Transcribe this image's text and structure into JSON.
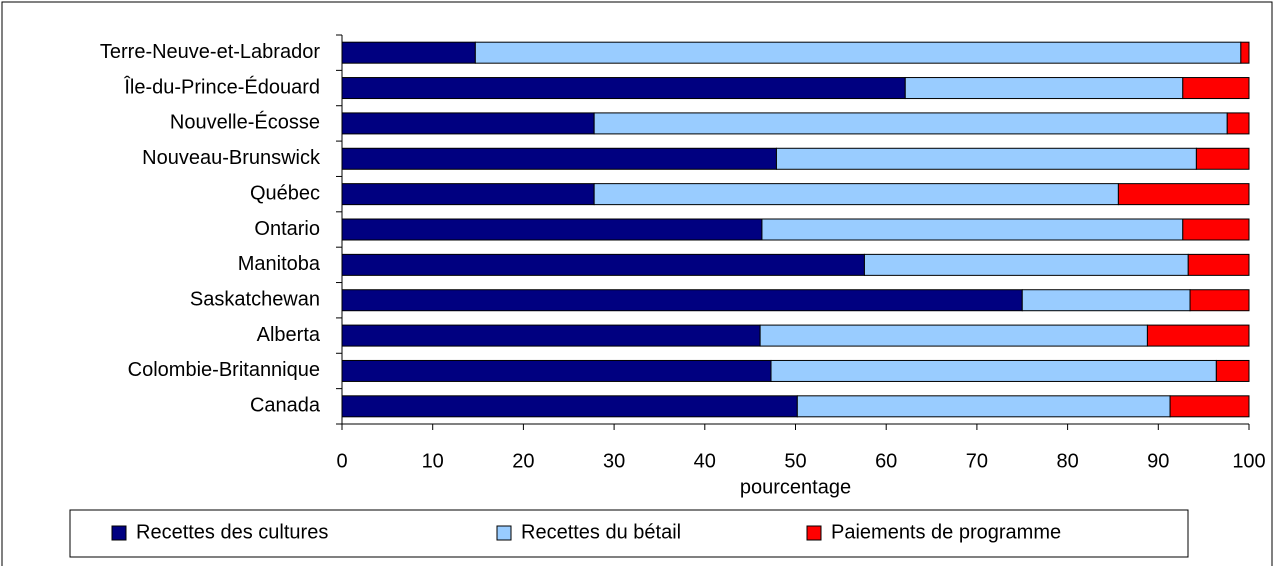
{
  "chart_data": {
    "type": "stacked-barh",
    "categories": [
      "Terre-Neuve-et-Labrador",
      "Île-du-Prince-Édouard",
      "Nouvelle-Écosse",
      "Nouveau-Brunswick",
      "Québec",
      "Ontario",
      "Manitoba",
      "Saskatchewan",
      "Alberta",
      "Colombie-Britannique",
      "Canada"
    ],
    "series": [
      {
        "name": "Recettes des cultures",
        "color": "#000080",
        "values": [
          14.7,
          62.1,
          27.8,
          47.9,
          27.8,
          46.3,
          57.6,
          75.0,
          46.1,
          47.3,
          50.2
        ]
      },
      {
        "name": "Recettes du bétail",
        "color": "#99ccff",
        "values": [
          84.4,
          30.6,
          69.8,
          46.3,
          57.8,
          46.4,
          35.7,
          18.5,
          42.7,
          49.1,
          41.1
        ]
      },
      {
        "name": "Paiements de programme",
        "color": "#ff0000",
        "values": [
          0.9,
          7.3,
          2.4,
          5.8,
          14.4,
          7.3,
          6.7,
          6.5,
          11.2,
          3.6,
          8.7
        ]
      }
    ],
    "xlabel": "pourcentage",
    "xlim": [
      0,
      100
    ],
    "xticks": [
      0,
      10,
      20,
      30,
      40,
      50,
      60,
      70,
      80,
      90,
      100
    ],
    "legend": "bottom"
  }
}
